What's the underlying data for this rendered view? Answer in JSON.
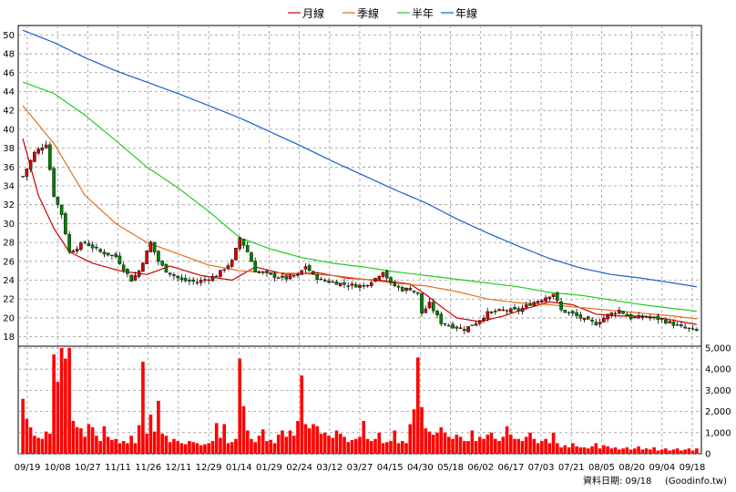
{
  "chart_data": {
    "type": "candlestick",
    "legend": {
      "placement": "top-center",
      "items": [
        {
          "label": "月線",
          "color": "#cc0000"
        },
        {
          "label": "季線",
          "color": "#e07020"
        },
        {
          "label": "半年",
          "color": "#22cc22"
        },
        {
          "label": "年線",
          "color": "#1560cc"
        }
      ]
    },
    "price_axis": {
      "min": 17,
      "max": 51,
      "ticks": [
        18,
        20,
        22,
        24,
        26,
        28,
        30,
        32,
        34,
        36,
        38,
        40,
        42,
        44,
        46,
        48,
        50
      ],
      "position": "left"
    },
    "volume_axis": {
      "min": 0,
      "max": 5000,
      "ticks": [
        "0",
        "1,000",
        "2,000",
        "3,000",
        "4,000",
        "5,000"
      ],
      "position": "right"
    },
    "x_labels": [
      "09/19",
      "10/08",
      "10/27",
      "11/11",
      "11/26",
      "12/11",
      "12/29",
      "01/14",
      "01/29",
      "02/24",
      "03/12",
      "03/27",
      "04/15",
      "04/30",
      "05/18",
      "06/02",
      "06/17",
      "07/03",
      "07/21",
      "08/05",
      "08/20",
      "09/04",
      "09/18"
    ],
    "grid": true,
    "close_series": [
      [
        0,
        35
      ],
      [
        3,
        37.5
      ],
      [
        6,
        38.5
      ],
      [
        8,
        33
      ],
      [
        10,
        31
      ],
      [
        12,
        27
      ],
      [
        14,
        27.5
      ],
      [
        16,
        28
      ],
      [
        18,
        27.5
      ],
      [
        20,
        27
      ],
      [
        24,
        26.5
      ],
      [
        28,
        24
      ],
      [
        30,
        25
      ],
      [
        33,
        28
      ],
      [
        35,
        26
      ],
      [
        37,
        25
      ],
      [
        41,
        24
      ],
      [
        45,
        23.8
      ],
      [
        50,
        24.5
      ],
      [
        54,
        26
      ],
      [
        56,
        28.5
      ],
      [
        58,
        27
      ],
      [
        60,
        25
      ],
      [
        64,
        24.5
      ],
      [
        68,
        24.2
      ],
      [
        71,
        24.5
      ],
      [
        73,
        25.5
      ],
      [
        75,
        24.5
      ],
      [
        77,
        24
      ],
      [
        80,
        23.8
      ],
      [
        84,
        23.5
      ],
      [
        88,
        23.4
      ],
      [
        91,
        24.2
      ],
      [
        93,
        25
      ],
      [
        95,
        23.6
      ],
      [
        98,
        23
      ],
      [
        100,
        23.1
      ],
      [
        102,
        22.5
      ],
      [
        103,
        20.5
      ],
      [
        105,
        21.5
      ],
      [
        108,
        19.5
      ],
      [
        112,
        19
      ],
      [
        114,
        18.8
      ],
      [
        117,
        19.5
      ],
      [
        120,
        20.5
      ],
      [
        124,
        20.8
      ],
      [
        128,
        20.8
      ],
      [
        131,
        21.5
      ],
      [
        134,
        22
      ],
      [
        137,
        22.6
      ],
      [
        139,
        20.8
      ],
      [
        142,
        20.4
      ],
      [
        145,
        19.8
      ],
      [
        148,
        19.4
      ],
      [
        151,
        20.3
      ],
      [
        154,
        20.8
      ],
      [
        157,
        20
      ],
      [
        161,
        20.1
      ],
      [
        164,
        19.9
      ],
      [
        167,
        19.5
      ],
      [
        170,
        19
      ],
      [
        174,
        18.6
      ]
    ],
    "moving_averages": {
      "月線": [
        [
          0,
          39
        ],
        [
          4,
          33
        ],
        [
          8,
          29.5
        ],
        [
          12,
          27
        ],
        [
          18,
          25.8
        ],
        [
          25,
          25
        ],
        [
          32,
          24.6
        ],
        [
          38,
          25.5
        ],
        [
          46,
          24.5
        ],
        [
          54,
          24
        ],
        [
          60,
          25.4
        ],
        [
          68,
          24.6
        ],
        [
          76,
          24.8
        ],
        [
          84,
          24.2
        ],
        [
          92,
          24
        ],
        [
          100,
          23.6
        ],
        [
          104,
          22.5
        ],
        [
          108,
          21.2
        ],
        [
          112,
          20
        ],
        [
          118,
          19.6
        ],
        [
          124,
          20.2
        ],
        [
          130,
          21
        ],
        [
          136,
          21.7
        ],
        [
          142,
          21.4
        ],
        [
          148,
          20.4
        ],
        [
          154,
          20.2
        ],
        [
          160,
          20.2
        ],
        [
          166,
          19.9
        ],
        [
          174,
          19.3
        ]
      ],
      "季線": [
        [
          0,
          42.5
        ],
        [
          8,
          38.5
        ],
        [
          16,
          33
        ],
        [
          24,
          30
        ],
        [
          32,
          28
        ],
        [
          40,
          26.8
        ],
        [
          48,
          25.6
        ],
        [
          56,
          25
        ],
        [
          64,
          24.8
        ],
        [
          72,
          24.7
        ],
        [
          80,
          24.5
        ],
        [
          88,
          24.1
        ],
        [
          96,
          23.7
        ],
        [
          104,
          23.4
        ],
        [
          112,
          22.8
        ],
        [
          120,
          22
        ],
        [
          128,
          21.6
        ],
        [
          136,
          21.4
        ],
        [
          144,
          21.1
        ],
        [
          152,
          20.8
        ],
        [
          160,
          20.5
        ],
        [
          168,
          20.2
        ],
        [
          174,
          19.9
        ]
      ],
      "半年": [
        [
          0,
          45
        ],
        [
          8,
          43.8
        ],
        [
          16,
          41.5
        ],
        [
          24,
          38.8
        ],
        [
          32,
          36
        ],
        [
          40,
          33.8
        ],
        [
          48,
          31.3
        ],
        [
          56,
          28.5
        ],
        [
          64,
          27.3
        ],
        [
          72,
          26.4
        ],
        [
          80,
          25.8
        ],
        [
          88,
          25.4
        ],
        [
          96,
          24.9
        ],
        [
          104,
          24.5
        ],
        [
          112,
          24.1
        ],
        [
          120,
          23.7
        ],
        [
          128,
          23.3
        ],
        [
          136,
          22.7
        ],
        [
          144,
          22.4
        ],
        [
          152,
          21.9
        ],
        [
          160,
          21.4
        ],
        [
          168,
          21
        ],
        [
          174,
          20.7
        ]
      ],
      "年線": [
        [
          0,
          50.5
        ],
        [
          8,
          49.2
        ],
        [
          16,
          47.6
        ],
        [
          24,
          46.2
        ],
        [
          32,
          45
        ],
        [
          40,
          43.8
        ],
        [
          48,
          42.5
        ],
        [
          56,
          41.2
        ],
        [
          64,
          39.7
        ],
        [
          72,
          38.2
        ],
        [
          80,
          36.6
        ],
        [
          88,
          35.1
        ],
        [
          96,
          33.6
        ],
        [
          104,
          32.2
        ],
        [
          112,
          30.5
        ],
        [
          120,
          29
        ],
        [
          128,
          27.6
        ],
        [
          136,
          26.3
        ],
        [
          144,
          25.3
        ],
        [
          152,
          24.6
        ],
        [
          160,
          24.2
        ],
        [
          168,
          23.7
        ],
        [
          174,
          23.3
        ]
      ]
    },
    "volume_series": [
      [
        0,
        2600
      ],
      [
        1,
        1650
      ],
      [
        2,
        1250
      ],
      [
        3,
        850
      ],
      [
        4,
        750
      ],
      [
        5,
        700
      ],
      [
        6,
        1050
      ],
      [
        7,
        950
      ],
      [
        8,
        4700
      ],
      [
        9,
        3400
      ],
      [
        10,
        5000
      ],
      [
        11,
        4500
      ],
      [
        12,
        5000
      ],
      [
        13,
        1550
      ],
      [
        14,
        1250
      ],
      [
        15,
        1200
      ],
      [
        16,
        800
      ],
      [
        17,
        1400
      ],
      [
        18,
        1250
      ],
      [
        19,
        850
      ],
      [
        20,
        600
      ],
      [
        21,
        1300
      ],
      [
        22,
        800
      ],
      [
        23,
        650
      ],
      [
        24,
        700
      ],
      [
        25,
        500
      ],
      [
        26,
        600
      ],
      [
        27,
        500
      ],
      [
        28,
        850
      ],
      [
        29,
        500
      ],
      [
        30,
        1350
      ],
      [
        31,
        4350
      ],
      [
        32,
        950
      ],
      [
        33,
        1850
      ],
      [
        34,
        1050
      ],
      [
        35,
        2500
      ],
      [
        36,
        950
      ],
      [
        37,
        850
      ],
      [
        38,
        550
      ],
      [
        39,
        700
      ],
      [
        40,
        600
      ],
      [
        41,
        500
      ],
      [
        42,
        450
      ],
      [
        43,
        600
      ],
      [
        44,
        550
      ],
      [
        45,
        500
      ],
      [
        46,
        400
      ],
      [
        47,
        450
      ],
      [
        48,
        500
      ],
      [
        49,
        600
      ],
      [
        50,
        1450
      ],
      [
        51,
        750
      ],
      [
        52,
        1400
      ],
      [
        53,
        500
      ],
      [
        54,
        550
      ],
      [
        55,
        700
      ],
      [
        56,
        4500
      ],
      [
        57,
        2250
      ],
      [
        58,
        1100
      ],
      [
        59,
        700
      ],
      [
        60,
        550
      ],
      [
        61,
        850
      ],
      [
        62,
        1150
      ],
      [
        63,
        600
      ],
      [
        64,
        650
      ],
      [
        65,
        500
      ],
      [
        66,
        900
      ],
      [
        67,
        1100
      ],
      [
        68,
        800
      ],
      [
        69,
        1100
      ],
      [
        70,
        850
      ],
      [
        71,
        1550
      ],
      [
        72,
        3700
      ],
      [
        73,
        1400
      ],
      [
        74,
        1200
      ],
      [
        75,
        1400
      ],
      [
        76,
        1300
      ],
      [
        77,
        950
      ],
      [
        78,
        1000
      ],
      [
        79,
        850
      ],
      [
        80,
        750
      ],
      [
        81,
        1100
      ],
      [
        82,
        950
      ],
      [
        83,
        800
      ],
      [
        84,
        550
      ],
      [
        85,
        650
      ],
      [
        86,
        700
      ],
      [
        87,
        800
      ],
      [
        88,
        1550
      ],
      [
        89,
        700
      ],
      [
        90,
        600
      ],
      [
        91,
        700
      ],
      [
        92,
        1000
      ],
      [
        93,
        500
      ],
      [
        94,
        550
      ],
      [
        95,
        600
      ],
      [
        96,
        1100
      ],
      [
        97,
        500
      ],
      [
        98,
        600
      ],
      [
        99,
        500
      ],
      [
        100,
        1400
      ],
      [
        101,
        2100
      ],
      [
        102,
        4550
      ],
      [
        103,
        2200
      ],
      [
        104,
        1200
      ],
      [
        105,
        1050
      ],
      [
        106,
        900
      ],
      [
        107,
        1000
      ],
      [
        108,
        1250
      ],
      [
        109,
        1000
      ],
      [
        110,
        800
      ],
      [
        111,
        700
      ],
      [
        112,
        900
      ],
      [
        113,
        800
      ],
      [
        114,
        600
      ],
      [
        115,
        600
      ],
      [
        116,
        1100
      ],
      [
        117,
        600
      ],
      [
        118,
        800
      ],
      [
        119,
        700
      ],
      [
        120,
        900
      ],
      [
        121,
        1000
      ],
      [
        122,
        700
      ],
      [
        123,
        600
      ],
      [
        124,
        800
      ],
      [
        125,
        1300
      ],
      [
        126,
        900
      ],
      [
        127,
        700
      ],
      [
        128,
        700
      ],
      [
        129,
        600
      ],
      [
        130,
        800
      ],
      [
        131,
        1000
      ],
      [
        132,
        700
      ],
      [
        133,
        500
      ],
      [
        134,
        600
      ],
      [
        135,
        700
      ],
      [
        136,
        500
      ],
      [
        137,
        1000
      ],
      [
        138,
        500
      ],
      [
        139,
        300
      ],
      [
        140,
        400
      ],
      [
        141,
        300
      ],
      [
        142,
        500
      ],
      [
        143,
        350
      ],
      [
        144,
        300
      ],
      [
        145,
        300
      ],
      [
        146,
        250
      ],
      [
        147,
        350
      ],
      [
        148,
        500
      ],
      [
        149,
        250
      ],
      [
        150,
        400
      ],
      [
        151,
        350
      ],
      [
        152,
        250
      ],
      [
        153,
        300
      ],
      [
        154,
        200
      ],
      [
        155,
        250
      ],
      [
        156,
        300
      ],
      [
        157,
        200
      ],
      [
        158,
        250
      ],
      [
        159,
        350
      ],
      [
        160,
        200
      ],
      [
        161,
        250
      ],
      [
        162,
        200
      ],
      [
        163,
        300
      ],
      [
        164,
        150
      ],
      [
        165,
        200
      ],
      [
        166,
        250
      ],
      [
        167,
        150
      ],
      [
        168,
        200
      ],
      [
        169,
        250
      ],
      [
        170,
        150
      ],
      [
        171,
        200
      ],
      [
        172,
        250
      ],
      [
        173,
        150
      ],
      [
        174,
        250
      ]
    ]
  },
  "footer": {
    "date_label": "資料日期: 09/18",
    "source": "(Goodinfo.tw)"
  }
}
